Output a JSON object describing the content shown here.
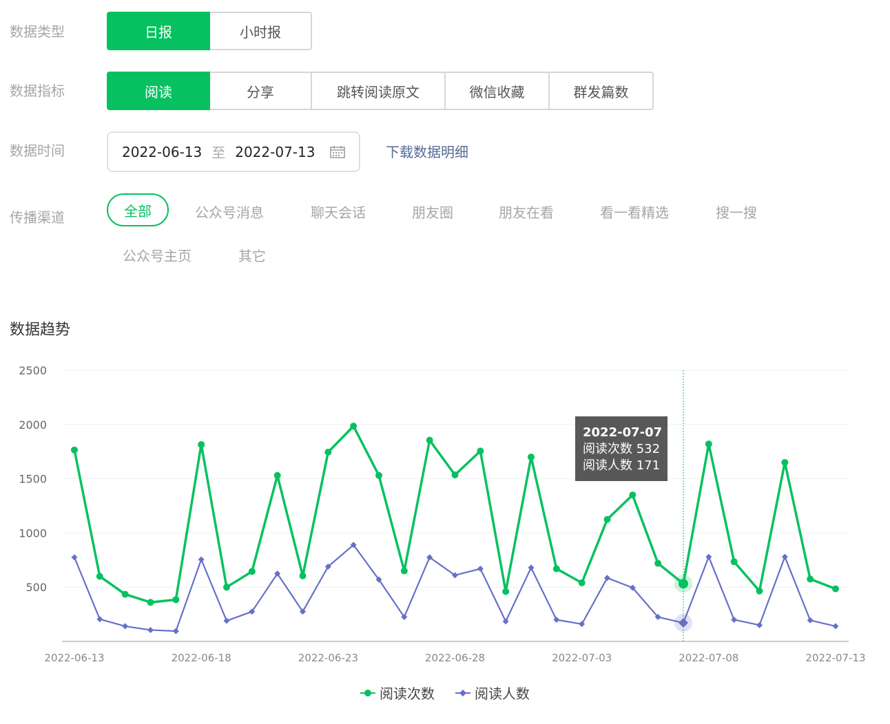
{
  "filters": {
    "data_type": {
      "label": "数据类型",
      "options": [
        "日报",
        "小时报"
      ],
      "selected": "日报"
    },
    "data_metric": {
      "label": "数据指标",
      "options": [
        "阅读",
        "分享",
        "跳转阅读原文",
        "微信收藏",
        "群发篇数"
      ],
      "selected": "阅读"
    },
    "data_time": {
      "label": "数据时间",
      "start": "2022-06-13",
      "separator": "至",
      "end": "2022-07-13",
      "download_link": "下载数据明细"
    },
    "channel": {
      "label": "传播渠道",
      "options": [
        "全部",
        "公众号消息",
        "聊天会话",
        "朋友圈",
        "朋友在看",
        "看一看精选",
        "搜一搜",
        "公众号主页",
        "其它"
      ],
      "selected": "全部"
    }
  },
  "section_title": "数据趋势",
  "tooltip": {
    "date": "2022-07-07",
    "line1": "阅读次数 532",
    "line2": "阅读人数 171"
  },
  "legend": {
    "series1": "阅读次数",
    "series2": "阅读人数"
  },
  "colors": {
    "accent": "#07c160",
    "series2": "#6670c8",
    "link": "#576b95"
  },
  "chart_data": {
    "type": "line",
    "x": [
      "2022-06-13",
      "2022-06-14",
      "2022-06-15",
      "2022-06-16",
      "2022-06-17",
      "2022-06-18",
      "2022-06-19",
      "2022-06-20",
      "2022-06-21",
      "2022-06-22",
      "2022-06-23",
      "2022-06-24",
      "2022-06-25",
      "2022-06-26",
      "2022-06-27",
      "2022-06-28",
      "2022-06-29",
      "2022-06-30",
      "2022-07-01",
      "2022-07-02",
      "2022-07-03",
      "2022-07-04",
      "2022-07-05",
      "2022-07-06",
      "2022-07-07",
      "2022-07-08",
      "2022-07-09",
      "2022-07-10",
      "2022-07-11",
      "2022-07-12",
      "2022-07-13"
    ],
    "x_tick_labels": [
      "2022-06-13",
      "2022-06-18",
      "2022-06-23",
      "2022-06-28",
      "2022-07-03",
      "2022-07-08",
      "2022-07-13"
    ],
    "series": [
      {
        "name": "阅读次数",
        "marker": "circle",
        "values": [
          1765,
          600,
          435,
          360,
          385,
          1815,
          500,
          645,
          1530,
          605,
          1745,
          1985,
          1530,
          650,
          1855,
          1535,
          1755,
          460,
          1700,
          670,
          540,
          1125,
          1350,
          720,
          532,
          1820,
          735,
          465,
          1650,
          575,
          485
        ]
      },
      {
        "name": "阅读人数",
        "marker": "diamond",
        "values": [
          775,
          205,
          140,
          105,
          95,
          755,
          190,
          275,
          625,
          275,
          690,
          890,
          570,
          225,
          775,
          610,
          670,
          185,
          680,
          200,
          160,
          585,
          495,
          225,
          171,
          780,
          200,
          150,
          780,
          195,
          140
        ]
      }
    ],
    "y_ticks": [
      500,
      1000,
      1500,
      2000,
      2500
    ],
    "ylim": [
      0,
      2500
    ],
    "grid": true,
    "highlight_x": "2022-07-07",
    "legend_position": "bottom-center"
  }
}
